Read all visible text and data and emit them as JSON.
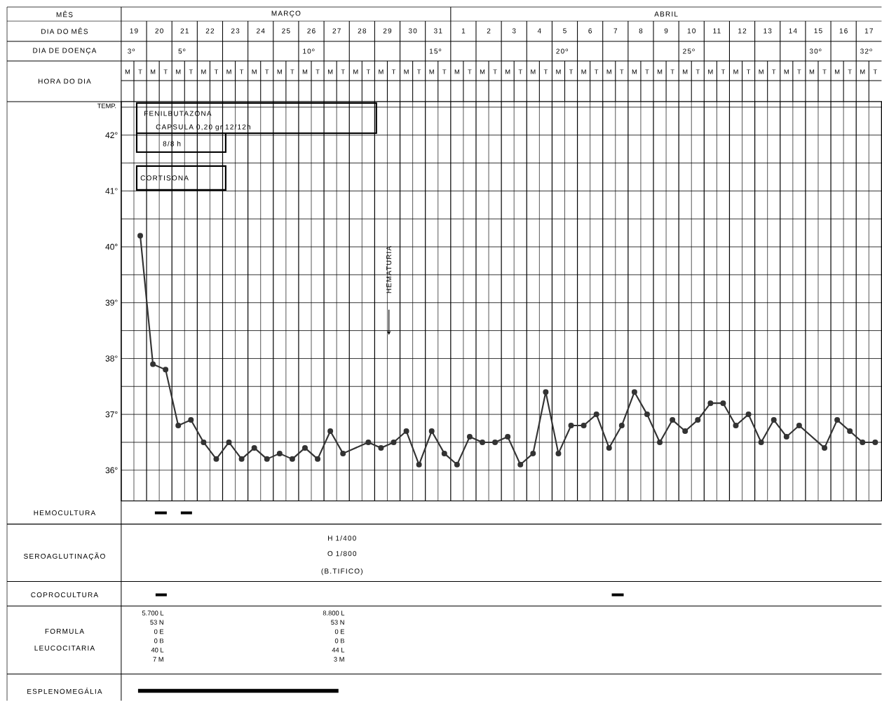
{
  "chart_data": {
    "type": "line",
    "ylabel": "TEMP.",
    "categories": [
      "M",
      "T",
      "M",
      "T",
      "M",
      "T",
      "M",
      "T",
      "M",
      "T",
      "M",
      "T",
      "M",
      "T",
      "M",
      "T",
      "M",
      "T",
      "M",
      "T",
      "M",
      "T",
      "M",
      "T",
      "M",
      "T",
      "M",
      "T",
      "M",
      "T",
      "M",
      "T",
      "M",
      "T",
      "M",
      "T",
      "M",
      "T",
      "M",
      "T",
      "M",
      "T",
      "M",
      "T",
      "M",
      "T",
      "M",
      "T",
      "M",
      "T",
      "M",
      "T",
      "M",
      "T",
      "M",
      "T",
      "M",
      "T",
      "M",
      "T"
    ],
    "values": [
      null,
      40.2,
      37.9,
      37.8,
      36.8,
      36.9,
      36.5,
      36.2,
      36.5,
      36.2,
      36.4,
      36.2,
      36.3,
      36.2,
      36.4,
      36.2,
      36.7,
      36.3,
      null,
      36.5,
      36.4,
      36.5,
      36.7,
      36.1,
      36.7,
      36.3,
      36.1,
      36.6,
      36.5,
      36.5,
      36.6,
      36.1,
      36.3,
      37.4,
      36.3,
      36.8,
      36.8,
      37.0,
      36.4,
      36.8,
      37.4,
      37.0,
      36.5,
      36.9,
      36.7,
      36.9,
      37.2,
      37.2,
      36.8,
      37.0,
      36.5,
      36.9,
      36.6,
      36.8,
      null,
      36.4,
      36.9,
      36.7,
      36.5,
      36.5
    ],
    "color": "#333333",
    "marker": "circle",
    "line_style": "solid",
    "grid": true,
    "ylim": [
      35.45,
      42.6
    ],
    "yticks": [
      {
        "value": 36,
        "label": "36°"
      },
      {
        "value": 36.5,
        "label": null
      },
      {
        "value": 37,
        "label": "37°"
      },
      {
        "value": 37.5,
        "label": null
      },
      {
        "value": 38,
        "label": "38°"
      },
      {
        "value": 38.5,
        "label": null
      },
      {
        "value": 39,
        "label": "39°"
      },
      {
        "value": 39.5,
        "label": null
      },
      {
        "value": 40,
        "label": "40°"
      },
      {
        "value": 40.5,
        "label": null
      },
      {
        "value": 41,
        "label": "41°"
      },
      {
        "value": 41.5,
        "label": null
      },
      {
        "value": 42,
        "label": "42°"
      },
      {
        "value": 42.5,
        "label": null
      }
    ],
    "annotations": [
      "MÊS",
      "DIA DO MÊS",
      "DIA DE DOENÇA",
      "HORA DO DIA",
      "MARÇO",
      "ABRIL",
      "19",
      "20",
      "21",
      "22",
      "23",
      "24",
      "25",
      "26",
      "27",
      "28",
      "29",
      "30",
      "31",
      "1",
      "2",
      "3",
      "4",
      "5",
      "6",
      "7",
      "8",
      "9",
      "10",
      "11",
      "12",
      "13",
      "14",
      "15",
      "16",
      "17",
      "3º",
      "5º",
      "10º",
      "15º",
      "20º",
      "25º",
      "30º",
      "32º",
      "FENILBUTAZONA",
      "CAPSULA 0,20 gr 12/12h",
      "8/8 h",
      "CORTISONA",
      "HEMATURIA",
      "HEMOCULTURA",
      "SEROAGLUTINAÇÃO",
      "COPROCULTURA",
      "FORMULA",
      "LEUCOCITARIA",
      "ESPLENOMEGÁLIA",
      "H 1/400",
      "O 1/800",
      "(B.TIFICO)",
      "5.700 L",
      "53 N",
      "0 E",
      "0 B",
      "40 L",
      "7 M",
      "8.800 L",
      "53 N",
      "0 E",
      "0 B",
      "44 L",
      "3 M"
    ]
  }
}
